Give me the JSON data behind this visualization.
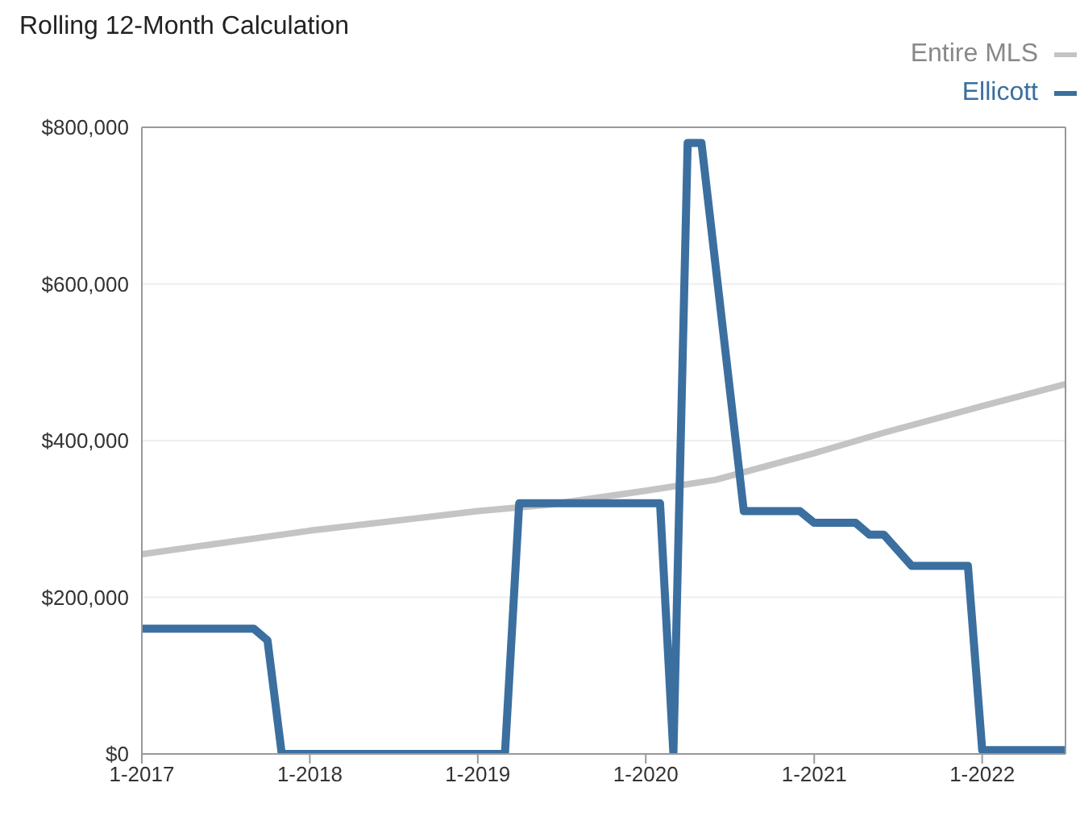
{
  "chart_data": {
    "type": "line",
    "title": "Rolling 12-Month Calculation",
    "legend": "top right",
    "grid": "y",
    "line_style": "solid",
    "marker": "none",
    "xlim": [
      "2017-01",
      "2022-07"
    ],
    "xticks": [
      {
        "value": "2017-01",
        "label": "1-2017"
      },
      {
        "value": "2018-01",
        "label": "1-2018"
      },
      {
        "value": "2019-01",
        "label": "1-2019"
      },
      {
        "value": "2020-01",
        "label": "1-2020"
      },
      {
        "value": "2021-01",
        "label": "1-2021"
      },
      {
        "value": "2022-01",
        "label": "1-2022"
      }
    ],
    "ylim": [
      0,
      800000
    ],
    "yticks": [
      {
        "value": 0,
        "label": "$0"
      },
      {
        "value": 200000,
        "label": "$200,000"
      },
      {
        "value": 400000,
        "label": "$400,000"
      },
      {
        "value": 600000,
        "label": "$600,000"
      },
      {
        "value": 800000,
        "label": "$800,000"
      }
    ],
    "series": [
      {
        "name": "Entire MLS",
        "color": "#c4c4c4",
        "x": [
          "2017-01",
          "2018-01",
          "2019-01",
          "2019-06",
          "2020-01",
          "2020-06",
          "2021-01",
          "2021-06",
          "2022-01",
          "2022-07"
        ],
        "values": [
          255000,
          285000,
          310000,
          318000,
          336000,
          350000,
          384000,
          410000,
          444000,
          472000
        ]
      },
      {
        "name": "Ellicott",
        "color": "#3b6f9f",
        "x": [
          "2017-01",
          "2017-09",
          "2017-10",
          "2017-11",
          "2019-03",
          "2019-04",
          "2020-02",
          "2020-03",
          "2020-04",
          "2020-05",
          "2020-08",
          "2020-12",
          "2021-01",
          "2021-04",
          "2021-05",
          "2021-06",
          "2021-08",
          "2021-12",
          "2022-01",
          "2022-07"
        ],
        "values": [
          160000,
          160000,
          145000,
          0,
          0,
          320000,
          320000,
          0,
          780000,
          780000,
          310000,
          310000,
          295000,
          295000,
          280000,
          280000,
          240000,
          240000,
          5000,
          5000
        ]
      }
    ]
  }
}
